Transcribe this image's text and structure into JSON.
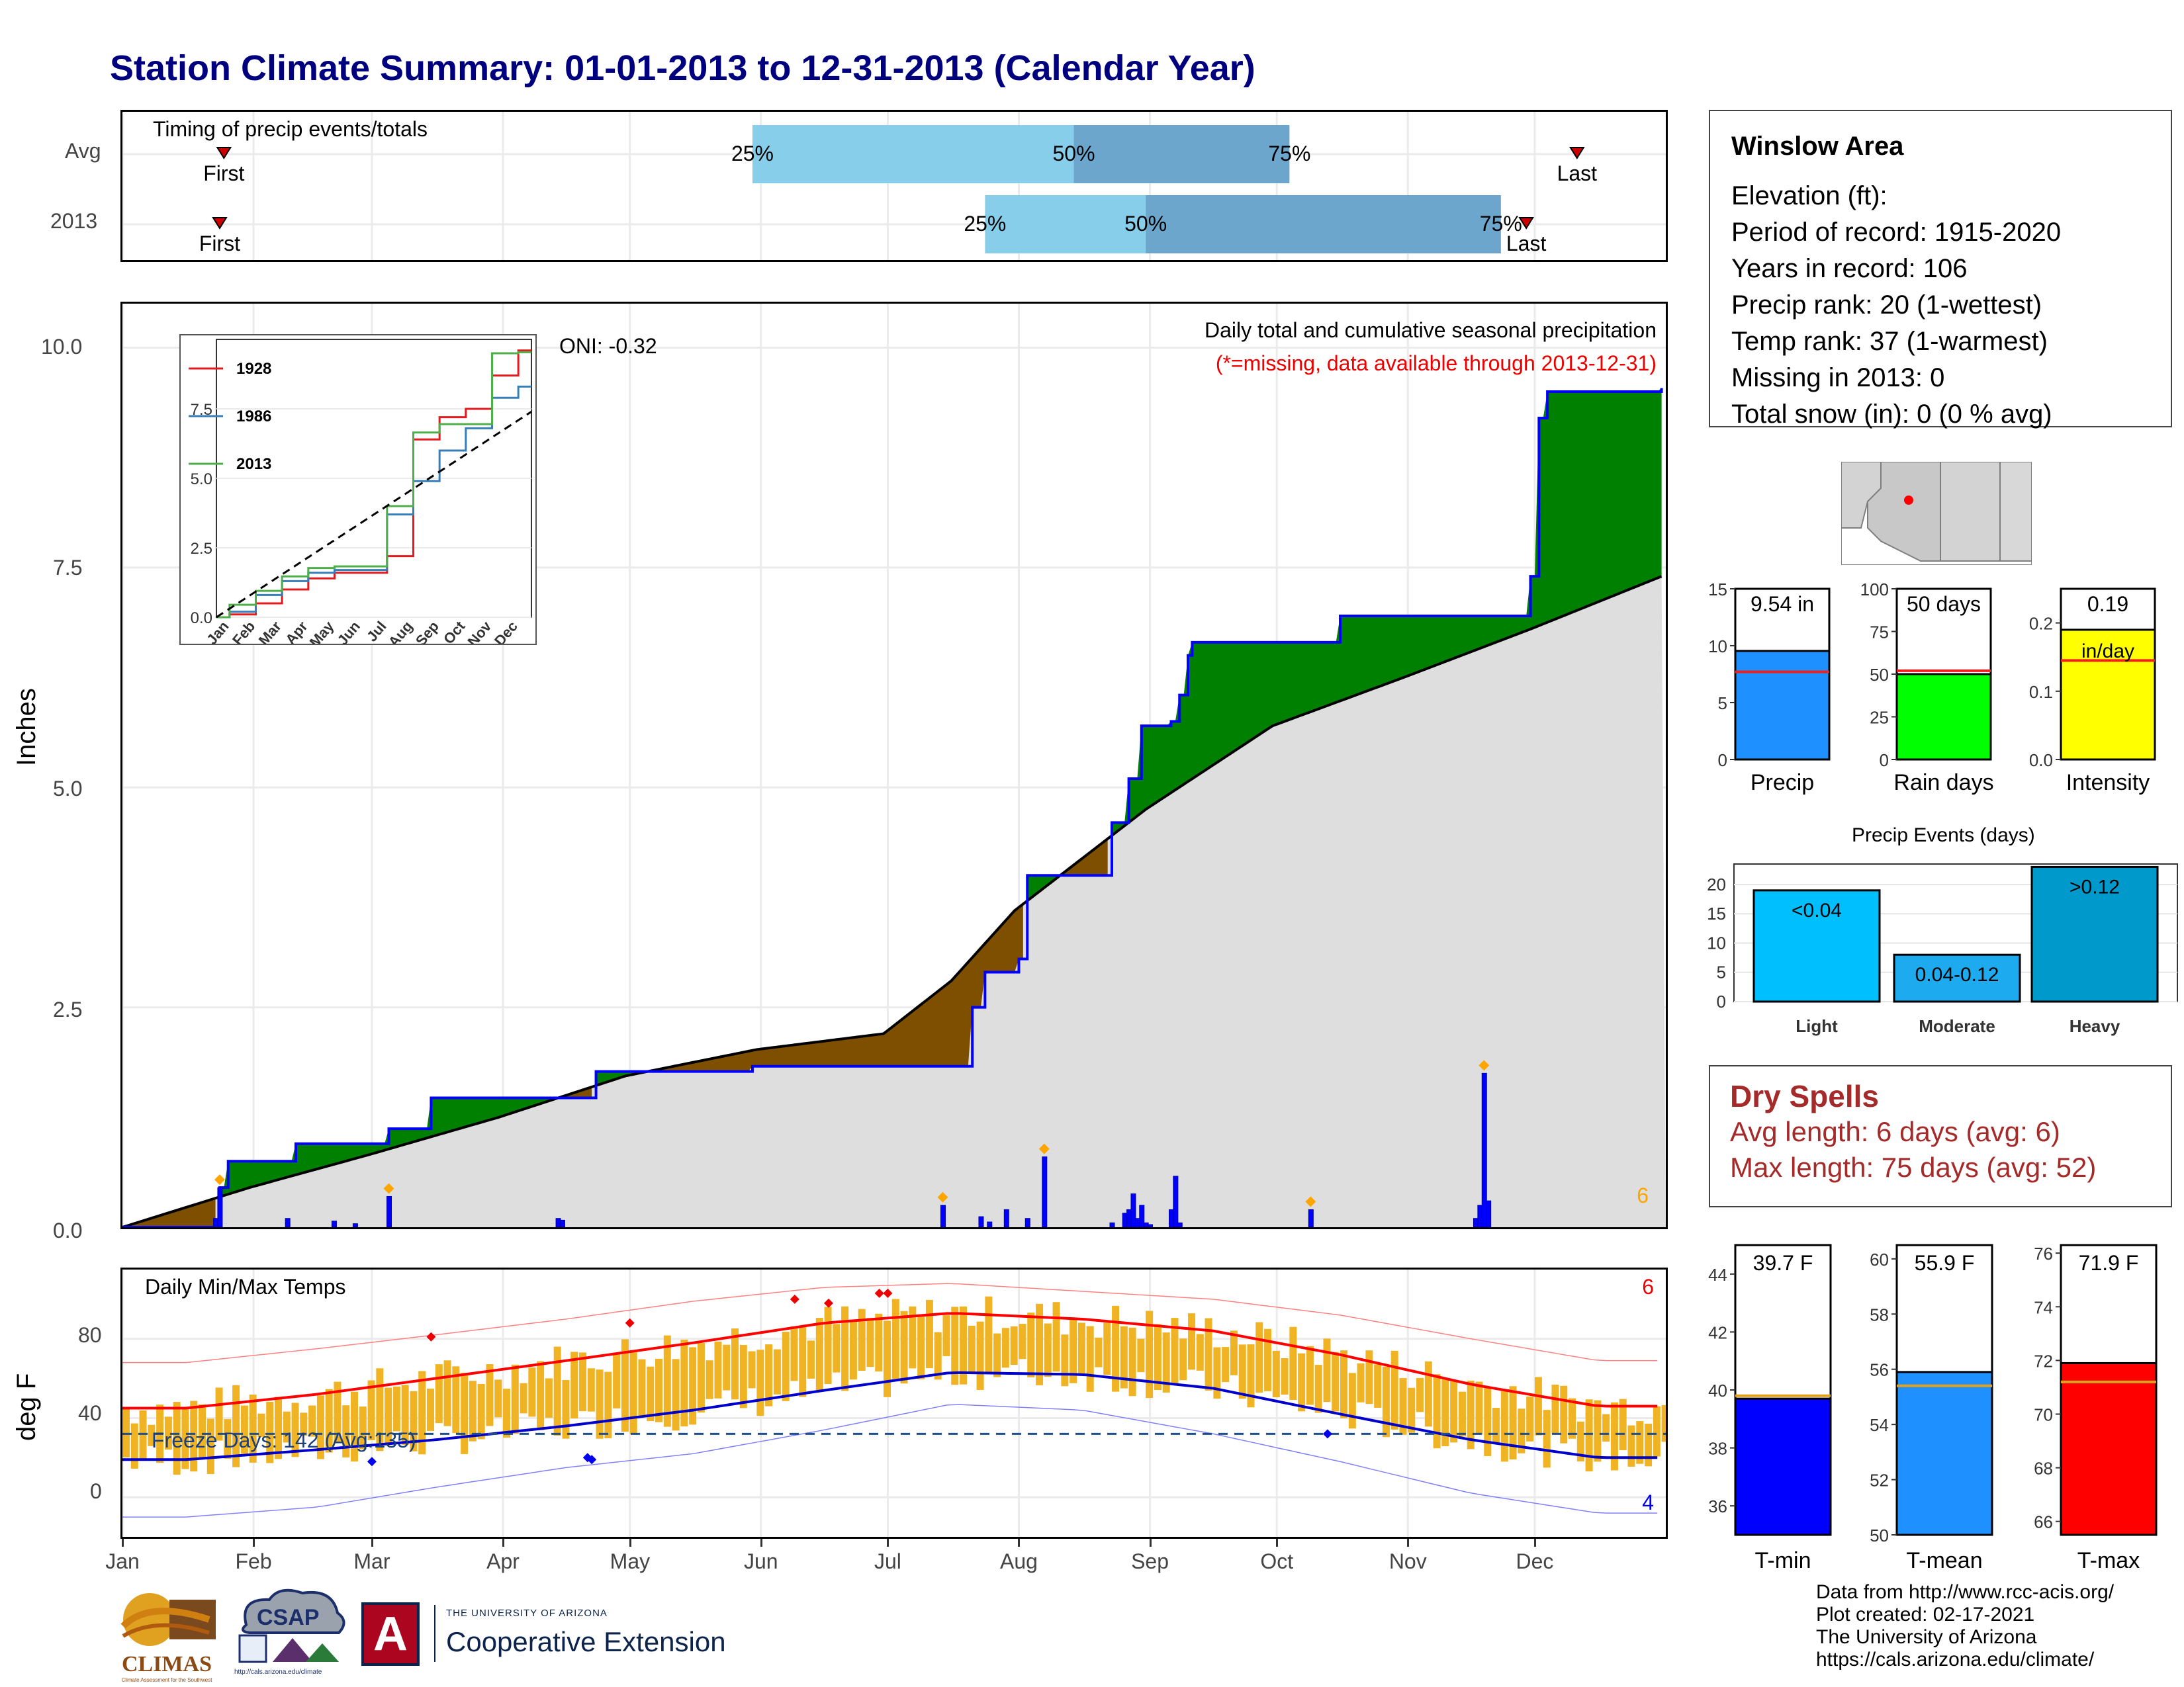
{
  "title": "Station Climate Summary: 01-01-2013 to 12-31-2013 (Calendar Year)",
  "timing": {
    "title": "Timing of precip events/totals",
    "rows": [
      {
        "label": "Avg",
        "first_label": "First",
        "last_label": "Last",
        "first_day": 25,
        "p25_day": 150,
        "p50_day": 226,
        "p75_day": 277,
        "last_day": 345
      },
      {
        "label": "2013",
        "first_label": "First",
        "last_label": "Last",
        "first_day": 24,
        "p25_day": 205,
        "p50_day": 243,
        "p75_day": 327,
        "last_day": 333
      }
    ],
    "pct_labels": [
      "25%",
      "50%",
      "75%"
    ]
  },
  "station": {
    "name": "Winslow Area",
    "lines": [
      "Elevation (ft):",
      "Period of record: 1915-2020",
      "Years in record: 106",
      "Precip rank: 20 (1-wettest)",
      "Temp rank: 37 (1-warmest)",
      "Missing in 2013: 0",
      "Total snow (in): 0 (0 % avg)"
    ]
  },
  "main_plot": {
    "title": "Daily total and cumulative seasonal precipitation",
    "subtitle": "(*=missing, data available through 2013-12-31)",
    "oni": "ONI: -0.32",
    "ylabel": "Inches",
    "yticks": [
      "0.0",
      "2.5",
      "5.0",
      "7.5",
      "10.0"
    ],
    "count_label": "6"
  },
  "inset": {
    "legend": [
      "1928",
      "1986",
      "2013"
    ],
    "yticks": [
      "0.0",
      "2.5",
      "5.0",
      "7.5"
    ],
    "months": [
      "Jan",
      "Feb",
      "Mar",
      "Apr",
      "May",
      "Jun",
      "Jul",
      "Aug",
      "Sep",
      "Oct",
      "Nov",
      "Dec"
    ]
  },
  "temp_plot": {
    "title": "Daily Min/Max Temps",
    "ylabel": "deg F",
    "yticks": [
      "0",
      "40",
      "80"
    ],
    "freeze_text": "Freeze Days: 142 (Avg:135)",
    "max_record_count": "6",
    "min_record_count": "4",
    "months": [
      "Jan",
      "Feb",
      "Mar",
      "Apr",
      "May",
      "Jun",
      "Jul",
      "Aug",
      "Sep",
      "Oct",
      "Nov",
      "Dec"
    ]
  },
  "summary_bars": {
    "precip": {
      "label": "Precip",
      "value_text": "9.54 in",
      "value": 9.54,
      "avg": 7.7,
      "max": 15,
      "ticks": [
        "0",
        "5",
        "10",
        "15"
      ],
      "color": "#1e90ff"
    },
    "rain_days": {
      "label": "Rain days",
      "value_text": "50 days",
      "value": 50,
      "avg": 52,
      "max": 100,
      "ticks": [
        "0",
        "25",
        "50",
        "75",
        "100"
      ],
      "color": "#00ff00"
    },
    "intensity": {
      "label": "Intensity",
      "value_text": "0.19",
      "value_unit": "in/day",
      "value": 0.19,
      "avg": 0.145,
      "max": 0.25,
      "ticks": [
        "0.0",
        "0.1",
        "0.2"
      ],
      "color": "#ffff00"
    }
  },
  "events": {
    "title": "Precip Events (days)",
    "categories": [
      "Light",
      "Moderate",
      "Heavy"
    ],
    "labels": [
      "<0.04",
      "0.04-0.12",
      ">0.12"
    ],
    "values": [
      19,
      8,
      23
    ],
    "yticks": [
      "0",
      "5",
      "10",
      "15",
      "20"
    ],
    "colors": [
      "#00bfff",
      "#1eaaee",
      "#0099cc"
    ]
  },
  "dry_spells": {
    "title": "Dry Spells",
    "avg_line": "Avg length: 6 days (avg: 6)",
    "max_line": "Max length: 75 days (avg: 52)"
  },
  "temp_bars": {
    "tmin": {
      "label": "T-min",
      "value_text": "39.7 F",
      "value": 39.7,
      "avg": 39.8,
      "min": 35,
      "max": 45,
      "ticks": [
        "36",
        "38",
        "40",
        "42",
        "44"
      ],
      "color": "#0000ff"
    },
    "tmean": {
      "label": "T-mean",
      "value_text": "55.9 F",
      "value": 55.9,
      "avg": 55.4,
      "min": 50,
      "max": 60.5,
      "ticks": [
        "50",
        "52",
        "54",
        "56",
        "58",
        "60"
      ],
      "color": "#1e90ff"
    },
    "tmax": {
      "label": "T-max",
      "value_text": "71.9 F",
      "value": 71.9,
      "avg": 71.2,
      "min": 65.5,
      "max": 76.3,
      "ticks": [
        "66",
        "68",
        "70",
        "72",
        "74",
        "76"
      ],
      "color": "#ff0000"
    }
  },
  "credits": [
    "Data from http://www.rcc-acis.org/",
    "Plot created: 02-17-2021",
    "The University of Arizona",
    "https://cals.arizona.edu/climate/"
  ],
  "logos": {
    "climas": "CLIMAS",
    "climas_sub": "Climate Assessment for the Southwest",
    "csap": "CSAP",
    "csap_url": "http://cals.arizona.edu/climate",
    "ua_letter": "A",
    "ua_top": "THE UNIVERSITY OF ARIZONA",
    "ua_bottom": "Cooperative Extension"
  },
  "chart_data": [
    {
      "type": "area",
      "title": "Daily total and cumulative seasonal precipitation",
      "ylabel": "Inches",
      "ylim": [
        0,
        10.5
      ],
      "x_unit": "day of year 2013",
      "cumulative_2013": [
        [
          1,
          0
        ],
        [
          24,
          0.45
        ],
        [
          26,
          0.75
        ],
        [
          40,
          0.75
        ],
        [
          42,
          0.95
        ],
        [
          62,
          0.95
        ],
        [
          64,
          1.12
        ],
        [
          72,
          1.12
        ],
        [
          74,
          1.47
        ],
        [
          111,
          1.47
        ],
        [
          113,
          1.77
        ],
        [
          150,
          1.83
        ],
        [
          195,
          1.83
        ],
        [
          202,
          2.5
        ],
        [
          205,
          2.9
        ],
        [
          213,
          3.05
        ],
        [
          215,
          4.0
        ],
        [
          232,
          4.0
        ],
        [
          235,
          4.6
        ],
        [
          239,
          5.1
        ],
        [
          242,
          5.7
        ],
        [
          249,
          5.75
        ],
        [
          251,
          6.05
        ],
        [
          253,
          6.5
        ],
        [
          254,
          6.65
        ],
        [
          287,
          6.65
        ],
        [
          289,
          6.95
        ],
        [
          333,
          6.95
        ],
        [
          334,
          7.4
        ],
        [
          336,
          9.2
        ],
        [
          338,
          9.5
        ],
        [
          365,
          9.54
        ]
      ],
      "average_cumulative": [
        [
          1,
          0
        ],
        [
          31,
          0.45
        ],
        [
          59,
          0.82
        ],
        [
          90,
          1.25
        ],
        [
          120,
          1.72
        ],
        [
          151,
          2.02
        ],
        [
          181,
          2.2
        ],
        [
          197,
          2.8
        ],
        [
          212,
          3.6
        ],
        [
          243,
          4.75
        ],
        [
          273,
          5.7
        ],
        [
          304,
          6.25
        ],
        [
          334,
          6.8
        ],
        [
          365,
          7.4
        ]
      ],
      "daily_values": [
        [
          23,
          0.1
        ],
        [
          24,
          0.45
        ],
        [
          40,
          0.1
        ],
        [
          51,
          0.07
        ],
        [
          56,
          0.04
        ],
        [
          64,
          0.35
        ],
        [
          104,
          0.1
        ],
        [
          105,
          0.08
        ],
        [
          195,
          0.25
        ],
        [
          204,
          0.12
        ],
        [
          206,
          0.06
        ],
        [
          210,
          0.2
        ],
        [
          215,
          0.1
        ],
        [
          219,
          0.8
        ],
        [
          235,
          0.05
        ],
        [
          238,
          0.16
        ],
        [
          239,
          0.2
        ],
        [
          240,
          0.38
        ],
        [
          241,
          0.1
        ],
        [
          242,
          0.25
        ],
        [
          243,
          0.05
        ],
        [
          244,
          0.03
        ],
        [
          249,
          0.2
        ],
        [
          250,
          0.58
        ],
        [
          251,
          0.05
        ],
        [
          282,
          0.2
        ],
        [
          321,
          0.1
        ],
        [
          322,
          0.25
        ],
        [
          323,
          1.75
        ],
        [
          324,
          0.3
        ]
      ]
    },
    {
      "type": "line",
      "title": "Cumulative precipitation comparison",
      "x": [
        "Jan",
        "Feb",
        "Mar",
        "Apr",
        "May",
        "Jun",
        "Jul",
        "Aug",
        "Sep",
        "Oct",
        "Nov",
        "Dec"
      ],
      "ylim": [
        0,
        10
      ],
      "series": [
        {
          "name": "1928",
          "values": [
            0.1,
            0.5,
            1.0,
            1.4,
            1.6,
            1.6,
            2.2,
            6.4,
            7.2,
            7.5,
            8.7,
            9.6
          ]
        },
        {
          "name": "1986",
          "values": [
            0.2,
            0.8,
            1.3,
            1.6,
            1.7,
            1.7,
            3.7,
            4.9,
            6.0,
            6.8,
            7.9,
            8.3
          ]
        },
        {
          "name": "2013",
          "values": [
            0.45,
            0.95,
            1.47,
            1.77,
            1.83,
            1.83,
            4.0,
            6.65,
            6.95,
            6.95,
            9.5,
            9.54
          ]
        }
      ]
    },
    {
      "type": "line",
      "title": "Daily Min/Max Temps",
      "ylabel": "deg F",
      "ylim": [
        -20,
        115
      ],
      "x": [
        "Jan",
        "Feb",
        "Mar",
        "Apr",
        "May",
        "Jun",
        "Jul",
        "Aug",
        "Sep",
        "Oct",
        "Nov",
        "Dec"
      ],
      "series": [
        {
          "name": "Avg max",
          "values": [
            45,
            52,
            60,
            69,
            78,
            88,
            93,
            90,
            84,
            72,
            57,
            46
          ]
        },
        {
          "name": "Avg min",
          "values": [
            19,
            24,
            29,
            36,
            44,
            54,
            63,
            62,
            55,
            42,
            29,
            20
          ]
        },
        {
          "name": "Record max",
          "values": [
            68,
            75,
            82,
            90,
            99,
            106,
            108,
            104,
            100,
            92,
            80,
            69
          ]
        },
        {
          "name": "Record min",
          "values": [
            -10,
            -5,
            5,
            15,
            22,
            34,
            47,
            44,
            32,
            18,
            2,
            -8
          ]
        }
      ],
      "freeze_threshold": 32
    }
  ]
}
